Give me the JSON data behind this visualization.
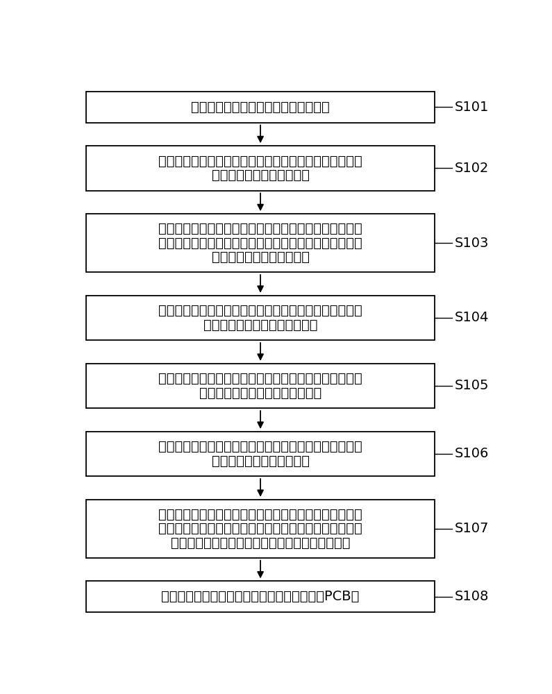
{
  "background_color": "#ffffff",
  "box_border_color": "#000000",
  "box_fill_color": "#ffffff",
  "text_color": "#000000",
  "arrow_color": "#000000",
  "label_color": "#000000",
  "steps": [
    {
      "id": "S101",
      "label": "S101",
      "lines": [
        "蚓刻铜板的第一表面制作第一线路图形"
      ],
      "n_lines": 1
    },
    {
      "id": "S102",
      "label": "S102",
      "lines": [
        "在所述第一线路图形内填充树脂并固化树脂；固化后树脂",
        "的表面与所述第一表面齐平"
      ],
      "n_lines": 2
    },
    {
      "id": "S103",
      "label": "S103",
      "lines": [
        "在所述第一表面非线路图形的区域蚓刻出凹槽并在所述凹",
        "槽内填充树脂，并固化树脂得到处理后铜板；固化后树脂",
        "的表面与所述第一表面齐平"
      ],
      "n_lines": 3
    },
    {
      "id": "S104",
      "label": "S104",
      "lines": [
        "在半固化片的两侧分别放置所述处理后铜板并进行压板；",
        "所述第一表面面向所述半固化片"
      ],
      "n_lines": 2
    },
    {
      "id": "S105",
      "label": "S105",
      "lines": [
        "蚓刻压板后铜板的第二表面制作第二线路图形；所述第二",
        "线路图形与所述第一线路图形对应"
      ],
      "n_lines": 2
    },
    {
      "id": "S106",
      "label": "S106",
      "lines": [
        "在所述第二线路图形内填充树脂并固化树脂；固化后树脂",
        "的表面与所述第二表面齐平"
      ],
      "n_lines": 2
    },
    {
      "id": "S107",
      "label": "S107",
      "lines": [
        "蚓刻所述第一线路图形和所述第二线路图形对应区域、电",
        "流线路层对应区域以外的铜板，并在蚓刻后的区域填充树",
        "脂和固化树脂，得到内层具有铜块的预处理电路板"
      ],
      "n_lines": 3
    },
    {
      "id": "S108",
      "label": "S108",
      "lines": [
        "对所述预处理电路板进行外层图形制作，得到PCB板"
      ],
      "n_lines": 1
    }
  ],
  "font_size": 14,
  "label_font_size": 14,
  "fig_width": 7.95,
  "fig_height": 10.0
}
